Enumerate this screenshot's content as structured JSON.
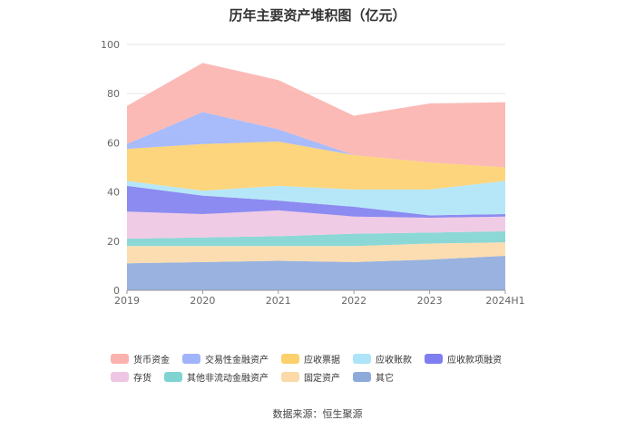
{
  "chart_data": {
    "type": "area",
    "title": "历年主要资产堆积图（亿元）",
    "categories": [
      "2019",
      "2020",
      "2021",
      "2022",
      "2023",
      "2024H1"
    ],
    "y_ticks": [
      0,
      20,
      40,
      60,
      80,
      100
    ],
    "ylim": [
      0,
      100
    ],
    "stacked": true,
    "legend_position": "bottom",
    "grid": true,
    "series": [
      {
        "name": "其它",
        "color": "#8eaadb",
        "values": [
          11,
          11.5,
          12,
          11.5,
          12.5,
          14
        ]
      },
      {
        "name": "固定资产",
        "color": "#fcd9a8",
        "values": [
          7,
          6.5,
          6,
          6.5,
          6.5,
          5.5
        ]
      },
      {
        "name": "其他非流动金融资产",
        "color": "#7fd4d1",
        "values": [
          3,
          3.5,
          4,
          5,
          4.5,
          4.5
        ]
      },
      {
        "name": "存货",
        "color": "#eec5e2",
        "values": [
          11,
          9.5,
          10.5,
          7,
          6,
          6
        ]
      },
      {
        "name": "应收款项融资",
        "color": "#7f7ef0",
        "values": [
          10.5,
          7.5,
          4,
          4,
          1,
          1
        ]
      },
      {
        "name": "应收账款",
        "color": "#aee4f8",
        "values": [
          2,
          2,
          6,
          7,
          10.5,
          13.5
        ]
      },
      {
        "name": "应收票据",
        "color": "#fdd06e",
        "values": [
          13,
          19,
          18,
          14,
          11,
          5.5
        ]
      },
      {
        "name": "交易性金融资产",
        "color": "#9fb4fb",
        "values": [
          2,
          13,
          5,
          0,
          0,
          0
        ]
      },
      {
        "name": "货币资金",
        "color": "#fbb2ae",
        "values": [
          15.5,
          20,
          20,
          16,
          24,
          26.5
        ]
      }
    ],
    "legend_order": [
      "货币资金",
      "交易性金融资产",
      "应收票据",
      "应收账款",
      "应收款项融资",
      "存货",
      "其他非流动金融资产",
      "固定资产",
      "其它"
    ]
  },
  "source_text": "数据来源：恒生聚源"
}
